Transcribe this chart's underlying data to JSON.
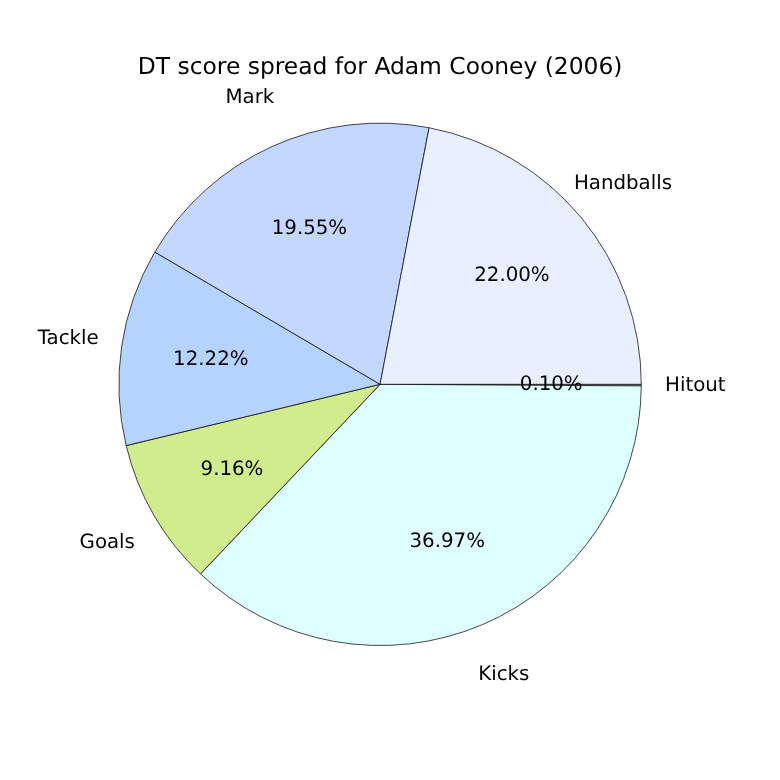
{
  "chart_data": {
    "type": "pie",
    "title": "DT score spread for Adam Cooney (2006)",
    "categories": [
      "Hitout",
      "Kicks",
      "Goals",
      "Tackle",
      "Mark",
      "Handballs"
    ],
    "values": [
      0.1,
      36.97,
      9.16,
      12.22,
      19.55,
      22.0
    ],
    "value_labels": [
      "0.10%",
      "36.97%",
      "9.16%",
      "12.22%",
      "19.55%",
      "22.00%"
    ],
    "colors": [
      "#f4f8ff",
      "#ddffff",
      "#d0ec8c",
      "#b4d4ff",
      "#c4d8ff",
      "#e8f0ff"
    ],
    "legend": false
  }
}
